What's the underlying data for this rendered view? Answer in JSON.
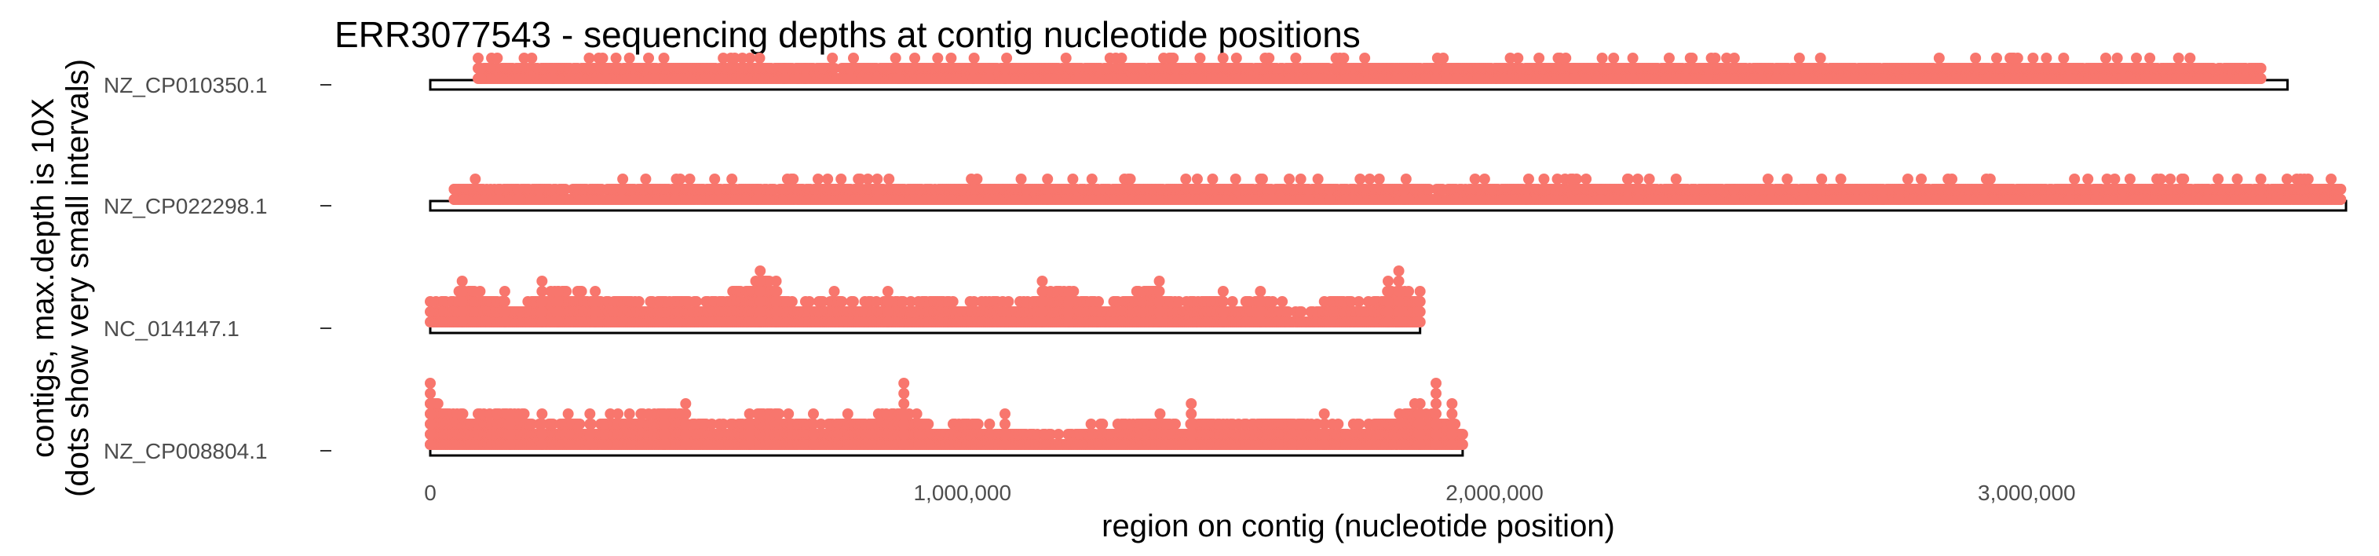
{
  "chart_data": {
    "type": "scatter",
    "title": "ERR3077543 - sequencing depths at contig nucleotide positions",
    "xlabel": "region on contig (nucleotide position)",
    "ylabel_lines": [
      "contigs, max.depth is 10X",
      "(dots show very small intervals)"
    ],
    "xlim": [
      0,
      3600000
    ],
    "x_ticks": [
      {
        "value": 0,
        "label": "0"
      },
      {
        "value": 1000000,
        "label": "1,000,000"
      },
      {
        "value": 2000000,
        "label": "2,000,000"
      },
      {
        "value": 3000000,
        "label": "3,000,000"
      }
    ],
    "max_depth": 10,
    "grid": false,
    "point_color": "#F8766D",
    "contigs": [
      {
        "name": "NZ_CP010350.1",
        "length": 3490000,
        "depth_profile": [
          [
            90000,
            1
          ],
          [
            3440000,
            1
          ]
        ],
        "spikes": [
          [
            95000,
            1
          ],
          [
            230000,
            1
          ],
          [
            330000,
            1
          ],
          [
            420000,
            1
          ],
          [
            665000,
            1
          ],
          [
            690000,
            1
          ],
          [
            705000,
            1
          ],
          [
            790000,
            1
          ],
          [
            880000,
            1
          ],
          [
            1020000,
            1
          ],
          [
            1050000,
            1
          ],
          [
            1080000,
            1
          ],
          [
            1400000,
            1
          ],
          [
            1890000,
            1
          ],
          [
            1910000,
            1
          ],
          [
            1930000,
            1
          ],
          [
            2150000,
            1
          ],
          [
            2260000,
            1
          ],
          [
            2360000,
            1
          ],
          [
            2400000,
            1
          ],
          [
            2500000,
            1
          ],
          [
            2530000,
            1
          ],
          [
            3080000,
            1
          ],
          [
            3180000,
            1
          ],
          [
            3410000,
            1
          ],
          [
            3440000,
            1
          ]
        ]
      },
      {
        "name": "NZ_CP022298.1",
        "length": 3600000,
        "depth_profile": [
          [
            45000,
            1
          ],
          [
            3590000,
            1
          ]
        ],
        "spikes": [
          [
            45000,
            1
          ],
          [
            130000,
            1
          ],
          [
            165000,
            1
          ],
          [
            205000,
            1
          ],
          [
            360000,
            1
          ],
          [
            460000,
            1
          ],
          [
            615000,
            1
          ],
          [
            840000,
            2
          ],
          [
            1120000,
            1
          ],
          [
            1160000,
            2
          ],
          [
            1580000,
            1
          ],
          [
            1650000,
            1
          ],
          [
            1690000,
            1
          ],
          [
            1830000,
            1
          ],
          [
            2060000,
            1
          ],
          [
            2200000,
            1
          ],
          [
            2250000,
            2
          ],
          [
            2270000,
            1
          ],
          [
            2450000,
            1
          ],
          [
            2520000,
            1
          ],
          [
            2580000,
            1
          ],
          [
            2680000,
            1
          ],
          [
            2730000,
            1
          ],
          [
            2760000,
            1
          ],
          [
            2920000,
            1
          ],
          [
            3080000,
            1
          ],
          [
            3130000,
            1
          ],
          [
            3180000,
            1
          ],
          [
            3340000,
            1
          ],
          [
            3440000,
            2
          ],
          [
            3590000,
            1
          ]
        ]
      },
      {
        "name": "NC_014147.1",
        "length": 1860000,
        "depth_profile": [
          [
            0,
            1
          ],
          [
            50000,
            2
          ],
          [
            70000,
            3
          ],
          [
            110000,
            2
          ],
          [
            160000,
            1
          ],
          [
            200000,
            2
          ],
          [
            240000,
            3
          ],
          [
            290000,
            2
          ],
          [
            330000,
            1
          ],
          [
            360000,
            2
          ],
          [
            400000,
            1
          ],
          [
            460000,
            2
          ],
          [
            510000,
            1
          ],
          [
            560000,
            2
          ],
          [
            600000,
            3
          ],
          [
            630000,
            4
          ],
          [
            660000,
            2
          ],
          [
            700000,
            1
          ],
          [
            760000,
            2
          ],
          [
            810000,
            1
          ],
          [
            860000,
            2
          ],
          [
            900000,
            1
          ],
          [
            960000,
            2
          ],
          [
            1000000,
            1
          ],
          [
            1060000,
            2
          ],
          [
            1100000,
            1
          ],
          [
            1150000,
            2
          ],
          [
            1180000,
            3
          ],
          [
            1220000,
            2
          ],
          [
            1260000,
            1
          ],
          [
            1300000,
            2
          ],
          [
            1350000,
            3
          ],
          [
            1380000,
            2
          ],
          [
            1420000,
            1
          ],
          [
            1460000,
            2
          ],
          [
            1500000,
            1
          ],
          [
            1550000,
            2
          ],
          [
            1600000,
            1
          ],
          [
            1640000,
            0
          ],
          [
            1700000,
            2
          ],
          [
            1760000,
            1
          ],
          [
            1820000,
            3
          ],
          [
            1860000,
            2
          ]
        ],
        "spikes": [
          [
            60000,
            4
          ],
          [
            140000,
            3
          ],
          [
            210000,
            4
          ],
          [
            240000,
            3
          ],
          [
            310000,
            3
          ],
          [
            620000,
            5
          ],
          [
            650000,
            4
          ],
          [
            860000,
            3
          ],
          [
            1150000,
            4
          ],
          [
            1200000,
            3
          ],
          [
            1370000,
            4
          ],
          [
            1490000,
            3
          ],
          [
            1560000,
            3
          ],
          [
            1800000,
            4
          ],
          [
            1820000,
            5
          ],
          [
            1860000,
            3
          ]
        ]
      },
      {
        "name": "NZ_CP008804.1",
        "length": 1940000,
        "depth_profile": [
          [
            0,
            4
          ],
          [
            40000,
            3
          ],
          [
            80000,
            2
          ],
          [
            130000,
            3
          ],
          [
            180000,
            2
          ],
          [
            220000,
            1
          ],
          [
            260000,
            2
          ],
          [
            300000,
            1
          ],
          [
            340000,
            2
          ],
          [
            400000,
            2
          ],
          [
            440000,
            3
          ],
          [
            480000,
            2
          ],
          [
            530000,
            1
          ],
          [
            600000,
            2
          ],
          [
            640000,
            3
          ],
          [
            680000,
            2
          ],
          [
            720000,
            1
          ],
          [
            780000,
            2
          ],
          [
            840000,
            2
          ],
          [
            880000,
            3
          ],
          [
            920000,
            2
          ],
          [
            960000,
            1
          ],
          [
            1000000,
            2
          ],
          [
            1060000,
            1
          ],
          [
            1120000,
            1
          ],
          [
            1180000,
            0
          ],
          [
            1230000,
            1
          ],
          [
            1280000,
            1
          ],
          [
            1330000,
            2
          ],
          [
            1370000,
            2
          ],
          [
            1420000,
            1
          ],
          [
            1470000,
            2
          ],
          [
            1520000,
            1
          ],
          [
            1560000,
            2
          ],
          [
            1620000,
            2
          ],
          [
            1680000,
            1
          ],
          [
            1740000,
            1
          ],
          [
            1800000,
            2
          ],
          [
            1850000,
            3
          ],
          [
            1900000,
            2
          ],
          [
            1940000,
            1
          ]
        ],
        "spikes": [
          [
            0,
            6
          ],
          [
            150000,
            3
          ],
          [
            210000,
            3
          ],
          [
            300000,
            3
          ],
          [
            440000,
            3
          ],
          [
            480000,
            4
          ],
          [
            600000,
            3
          ],
          [
            720000,
            3
          ],
          [
            890000,
            6
          ],
          [
            1080000,
            3
          ],
          [
            1430000,
            4
          ],
          [
            1680000,
            3
          ],
          [
            1860000,
            4
          ],
          [
            1890000,
            6
          ],
          [
            1920000,
            4
          ]
        ]
      }
    ]
  }
}
